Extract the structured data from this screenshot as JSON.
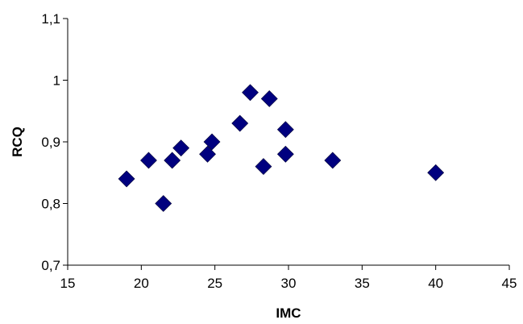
{
  "chart_data": {
    "type": "scatter",
    "title": "",
    "xlabel": "IMC",
    "ylabel": "RCQ",
    "xlim": [
      15,
      45
    ],
    "ylim": [
      0.7,
      1.1
    ],
    "x_ticks": [
      15,
      20,
      25,
      30,
      35,
      40,
      45
    ],
    "y_ticks": [
      0.7,
      0.8,
      0.9,
      1.0,
      1.1
    ],
    "x_tick_labels": [
      "15",
      "20",
      "25",
      "30",
      "35",
      "40",
      "45"
    ],
    "y_tick_labels": [
      "0,7",
      "0,8",
      "0,9",
      "1",
      "1,1"
    ],
    "grid": false,
    "legend": "none",
    "marker": "diamond",
    "marker_color": "#00007f",
    "series": [
      {
        "points": [
          {
            "x": 19.0,
            "y": 0.84
          },
          {
            "x": 20.5,
            "y": 0.87
          },
          {
            "x": 21.5,
            "y": 0.8
          },
          {
            "x": 22.1,
            "y": 0.87
          },
          {
            "x": 22.7,
            "y": 0.89
          },
          {
            "x": 24.5,
            "y": 0.88
          },
          {
            "x": 24.8,
            "y": 0.9
          },
          {
            "x": 26.7,
            "y": 0.93
          },
          {
            "x": 27.4,
            "y": 0.98
          },
          {
            "x": 28.3,
            "y": 0.86
          },
          {
            "x": 28.7,
            "y": 0.97
          },
          {
            "x": 29.8,
            "y": 0.88
          },
          {
            "x": 29.8,
            "y": 0.92
          },
          {
            "x": 33.0,
            "y": 0.87
          },
          {
            "x": 40.0,
            "y": 0.85
          }
        ]
      }
    ]
  }
}
